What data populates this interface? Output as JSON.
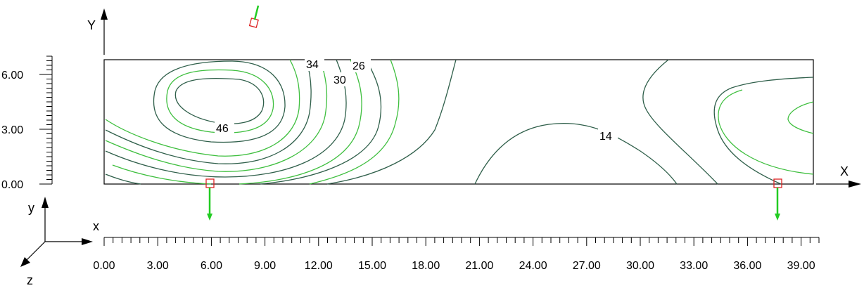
{
  "axes": {
    "global_x_label": "X",
    "global_y_label": "Y",
    "local_x_label": "x",
    "local_y_label": "y",
    "local_z_label": "z"
  },
  "x_ruler": {
    "tick_labels": [
      "0.00",
      "3.00",
      "6.00",
      "9.00",
      "12.00",
      "15.00",
      "18.00",
      "21.00",
      "24.00",
      "27.00",
      "30.00",
      "33.00",
      "36.00",
      "39.00"
    ]
  },
  "y_ruler": {
    "tick_labels": [
      "0.00",
      "3.00",
      "6.00"
    ]
  },
  "contour_labels": [
    "46",
    "34",
    "30",
    "26",
    "14"
  ],
  "plate": {
    "x_range": [
      0,
      40
    ],
    "y_range": [
      0,
      7
    ]
  },
  "supports": [
    {
      "x": 6,
      "y": 0
    },
    {
      "x": 38,
      "y": 0
    },
    {
      "x": 8.5,
      "y": 10
    }
  ],
  "colors": {
    "contour_dark": "#2f5f4a",
    "contour_light": "#3fbf3f",
    "support": "#dd2222",
    "load_arrow": "#22cc22"
  }
}
